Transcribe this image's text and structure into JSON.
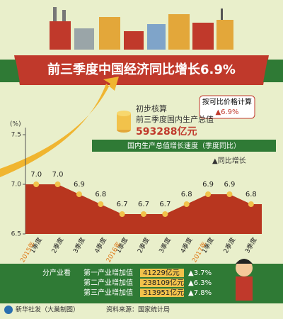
{
  "chart_data": {
    "type": "area",
    "title": "前三季度中国经济同比增长6.9%",
    "note": [
      "按可比价格计算",
      "▲6.9%"
    ],
    "summary": [
      "初步核算",
      "前三季度国内生产总值",
      "593288亿元"
    ],
    "legend_title": "国内生产总值增长速度（季度同比）",
    "series_label": "▲同比增长",
    "y_unit": "(%)",
    "categories": [
      "1季度",
      "2季度",
      "3季度",
      "4季度",
      "1季度",
      "2季度",
      "3季度",
      "4季度",
      "1季度",
      "2季度",
      "3季度"
    ],
    "year_labels": [
      "2015年",
      null,
      null,
      null,
      "2016年",
      null,
      null,
      null,
      "2017年",
      null,
      null
    ],
    "values": [
      7.0,
      7.0,
      6.9,
      6.8,
      6.7,
      6.7,
      6.7,
      6.8,
      6.9,
      6.9,
      6.8
    ],
    "value_labels": [
      "7.0",
      "7.0",
      "6.9",
      "6.8",
      "6.7",
      "6.7",
      "6.7",
      "6.8",
      "6.9",
      "6.9",
      "6.8"
    ],
    "color": "#b8361f",
    "ylim": [
      6.5,
      7.5
    ],
    "yticks": [
      6.5,
      {
        "value": 7,
        "label": "7.0"
      },
      7.5
    ]
  },
  "industry": {
    "title": "分产业看",
    "rows": [
      [
        "第一产业增加值",
        "41229亿元",
        "▲3.7%"
      ],
      [
        "第二产业增加值",
        "238109亿元",
        "▲6.3%"
      ],
      [
        "第三产业增加值",
        "313951亿元",
        "▲7.8%"
      ]
    ]
  },
  "footer": [
    "新华社发（大巢制图）",
    "资料来源：国家统计局"
  ]
}
